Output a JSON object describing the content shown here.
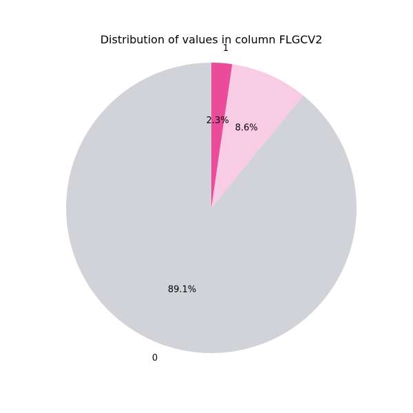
{
  "chart_data": {
    "type": "pie",
    "title": "Distribution of values in column FLGCV2",
    "startangle_deg": 90,
    "direction": "counterclockwise",
    "slices": [
      {
        "label": "0",
        "value": 89.1,
        "pct_label": "89.1%",
        "color": "#d1d3d9"
      },
      {
        "label": "",
        "value": 8.6,
        "pct_label": "8.6%",
        "color": "#f9cce6"
      },
      {
        "label": "1",
        "value": 2.3,
        "pct_label": "2.3%",
        "color": "#ea4c9b"
      }
    ]
  }
}
